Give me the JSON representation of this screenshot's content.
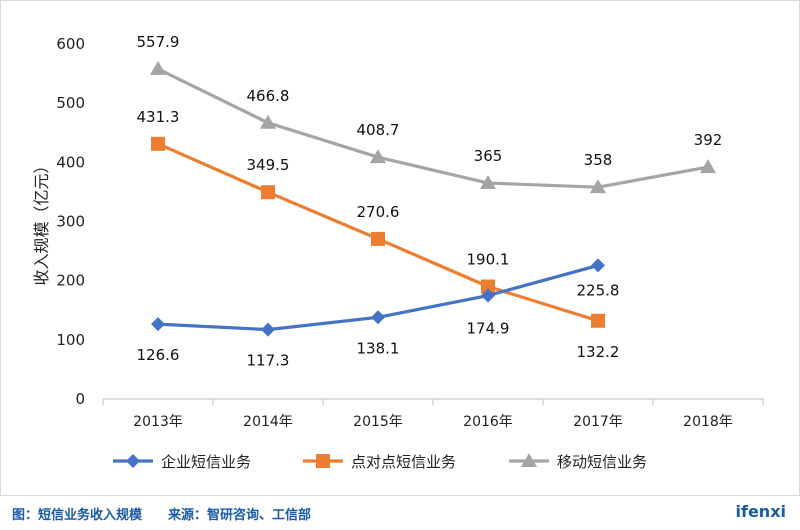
{
  "chart_data": {
    "type": "line",
    "categories": [
      "2013年",
      "2014年",
      "2015年",
      "2016年",
      "2017年",
      "2018年"
    ],
    "ylabel": "收入规模（亿元）",
    "ylim": [
      0,
      600
    ],
    "yticks": [
      0,
      100,
      200,
      300,
      400,
      500,
      600
    ],
    "grid": false,
    "legend_position": "bottom",
    "series": [
      {
        "name": "企业短信业务",
        "marker": "diamond",
        "color": "#4472c4",
        "values": [
          126.6,
          117.3,
          138.1,
          174.9,
          225.8,
          null
        ],
        "labels": [
          "126.6",
          "117.3",
          "138.1",
          "174.9",
          "225.8",
          ""
        ]
      },
      {
        "name": "点对点短信业务",
        "marker": "square",
        "color": "#ed7d31",
        "values": [
          431.3,
          349.5,
          270.6,
          190.1,
          132.2,
          null
        ],
        "labels": [
          "431.3",
          "349.5",
          "270.6",
          "190.1",
          "132.2",
          ""
        ]
      },
      {
        "name": "移动短信业务",
        "marker": "triangle",
        "color": "#a5a5a5",
        "values": [
          557.9,
          466.8,
          408.7,
          365,
          358,
          392
        ],
        "labels": [
          "557.9",
          "466.8",
          "408.7",
          "365",
          "358",
          "392"
        ]
      }
    ]
  },
  "footer": {
    "caption": "图：短信业务收入规模　　来源：智研咨询、工信部",
    "brand": "ifenxi"
  }
}
